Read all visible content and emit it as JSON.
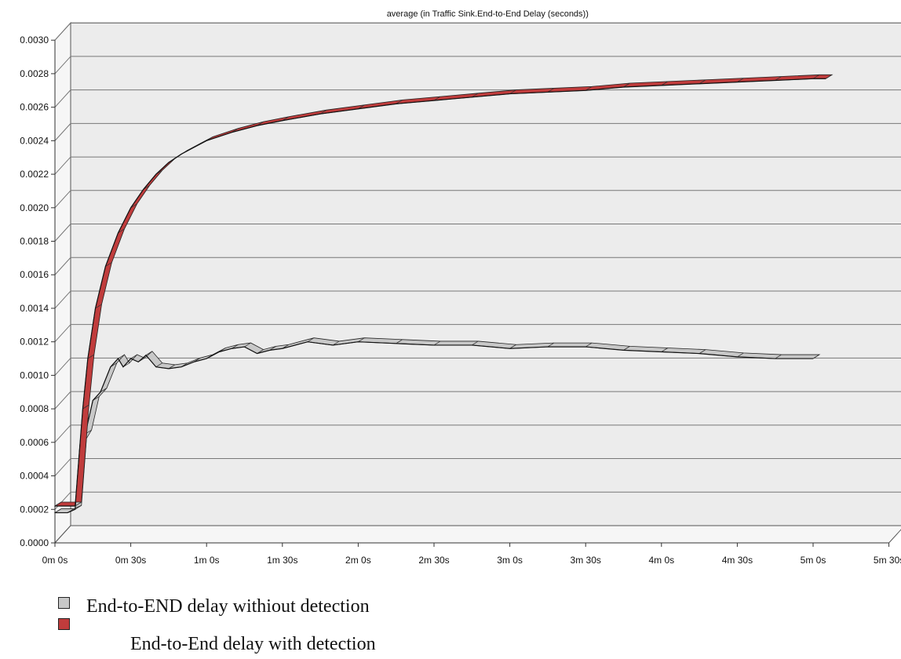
{
  "colors": {
    "series_gray": "#c8c8c8",
    "series_red": "#c03c3c"
  },
  "legend": {
    "items": [
      {
        "label": "End-to-END delay withiout detection",
        "swatch_color": "#c8c8c8"
      },
      {
        "label": "End-to-End delay with detection",
        "swatch_color": "#c03c3c"
      }
    ]
  },
  "chart_data": {
    "type": "line",
    "title": "average (in Traffic Sink.End-to-End Delay (seconds))",
    "xlabel": "",
    "ylabel": "",
    "x_ticks": [
      "0m 0s",
      "0m 30s",
      "1m 0s",
      "1m 30s",
      "2m 0s",
      "2m 30s",
      "3m 0s",
      "3m 30s",
      "4m 0s",
      "4m 30s",
      "5m 0s",
      "5m 30s"
    ],
    "y_ticks": [
      "0.0000",
      "0.0002",
      "0.0004",
      "0.0006",
      "0.0008",
      "0.0010",
      "0.0012",
      "0.0014",
      "0.0016",
      "0.0018",
      "0.0020",
      "0.0022",
      "0.0024",
      "0.0026",
      "0.0028",
      "0.0030"
    ],
    "xlim": [
      "0m 0s",
      "5m 30s"
    ],
    "ylim": [
      0,
      0.003
    ],
    "grid": true,
    "legend_position": "bottom-left",
    "series": [
      {
        "name": "End-to-END delay withiout detection",
        "color": "#c8c8c8",
        "points": [
          [
            "0m 0s",
            0.00018
          ],
          [
            "0m 5s",
            0.00018
          ],
          [
            "0m 8s",
            0.0002
          ],
          [
            "0m 10s",
            0.0006
          ],
          [
            "0m 12s",
            0.00065
          ],
          [
            "0m 15s",
            0.00085
          ],
          [
            "0m 18s",
            0.0009
          ],
          [
            "0m 22s",
            0.00105
          ],
          [
            "0m 25s",
            0.0011
          ],
          [
            "0m 27s",
            0.00105
          ],
          [
            "0m 30s",
            0.0011
          ],
          [
            "0m 33s",
            0.00108
          ],
          [
            "0m 36s",
            0.00112
          ],
          [
            "0m 40s",
            0.00105
          ],
          [
            "0m 45s",
            0.00104
          ],
          [
            "0m 50s",
            0.00105
          ],
          [
            "0m 55s",
            0.00108
          ],
          [
            "1m 0s",
            0.0011
          ],
          [
            "1m 5s",
            0.00114
          ],
          [
            "1m 10s",
            0.00116
          ],
          [
            "1m 15s",
            0.00117
          ],
          [
            "1m 20s",
            0.00113
          ],
          [
            "1m 25s",
            0.00115
          ],
          [
            "1m 30s",
            0.00116
          ],
          [
            "1m 40s",
            0.0012
          ],
          [
            "1m 50s",
            0.00118
          ],
          [
            "2m 0s",
            0.0012
          ],
          [
            "2m 15s",
            0.00119
          ],
          [
            "2m 30s",
            0.00118
          ],
          [
            "2m 45s",
            0.00118
          ],
          [
            "3m 0s",
            0.00116
          ],
          [
            "3m 15s",
            0.00117
          ],
          [
            "3m 30s",
            0.00117
          ],
          [
            "3m 45s",
            0.00115
          ],
          [
            "4m 0s",
            0.00114
          ],
          [
            "4m 15s",
            0.00113
          ],
          [
            "4m 30s",
            0.00111
          ],
          [
            "4m 45s",
            0.0011
          ],
          [
            "5m 0s",
            0.0011
          ]
        ]
      },
      {
        "name": "End-to-End delay with detection",
        "color": "#c03c3c",
        "points": [
          [
            "0m 0s",
            0.00022
          ],
          [
            "0m 8s",
            0.00022
          ],
          [
            "0m 11s",
            0.0008
          ],
          [
            "0m 13s",
            0.0011
          ],
          [
            "0m 16s",
            0.0014
          ],
          [
            "0m 20s",
            0.00165
          ],
          [
            "0m 25s",
            0.00185
          ],
          [
            "0m 30s",
            0.002
          ],
          [
            "0m 35s",
            0.00211
          ],
          [
            "0m 40s",
            0.0022
          ],
          [
            "0m 45s",
            0.00227
          ],
          [
            "0m 50s",
            0.00232
          ],
          [
            "0m 55s",
            0.00236
          ],
          [
            "1m 0s",
            0.0024
          ],
          [
            "1m 10s",
            0.00245
          ],
          [
            "1m 20s",
            0.00249
          ],
          [
            "1m 30s",
            0.00252
          ],
          [
            "1m 45s",
            0.00256
          ],
          [
            "2m 0s",
            0.00259
          ],
          [
            "2m 15s",
            0.00262
          ],
          [
            "2m 30s",
            0.00264
          ],
          [
            "2m 45s",
            0.00266
          ],
          [
            "3m 0s",
            0.00268
          ],
          [
            "3m 15s",
            0.00269
          ],
          [
            "3m 30s",
            0.0027
          ],
          [
            "3m 45s",
            0.00272
          ],
          [
            "4m 0s",
            0.00273
          ],
          [
            "4m 15s",
            0.00274
          ],
          [
            "4m 30s",
            0.00275
          ],
          [
            "4m 45s",
            0.00276
          ],
          [
            "5m 0s",
            0.00277
          ],
          [
            "5m 5s",
            0.00277
          ]
        ]
      }
    ]
  }
}
